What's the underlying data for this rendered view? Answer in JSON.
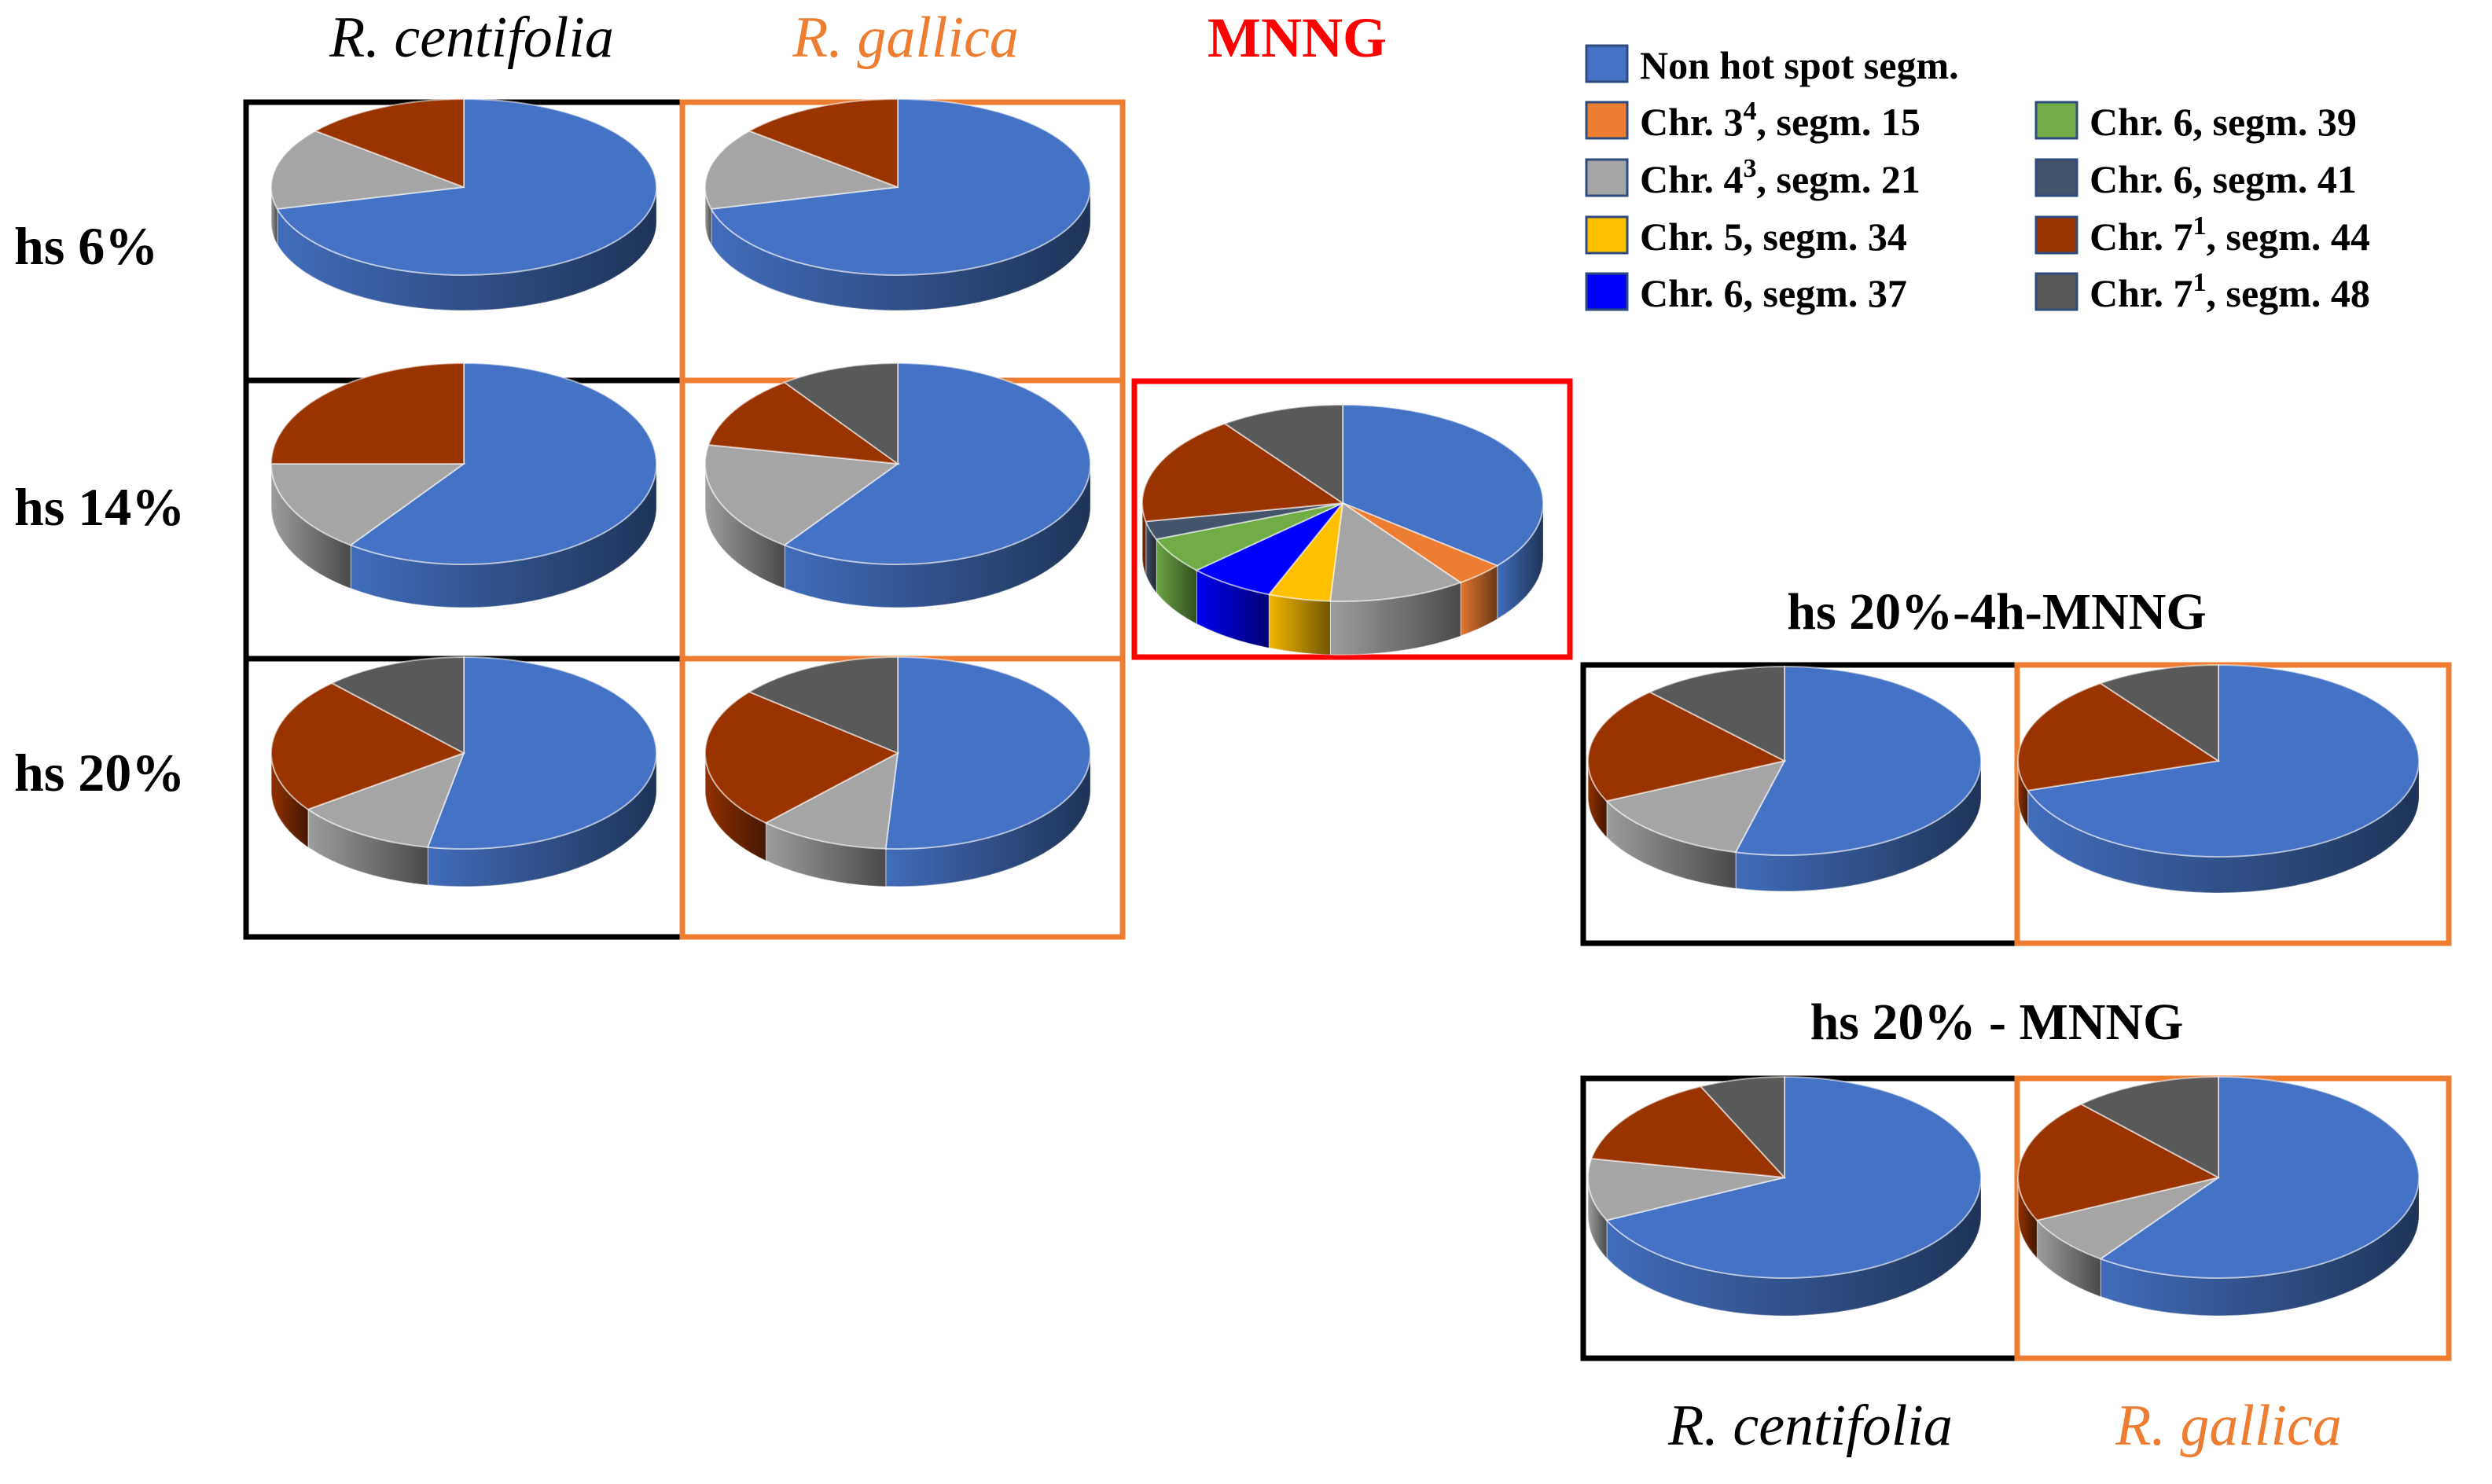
{
  "colors": {
    "non_hot_spot": "#4472C4",
    "chr3_15": "#ED7D31",
    "chr4_21": "#A5A5A5",
    "chr5_34": "#FFC000",
    "chr6_37": "#0000FF",
    "chr6_39": "#70AD47",
    "chr6_41": "#44546A",
    "chr7_44": "#993300",
    "chr7_48": "#595959",
    "frame_centifolia": "#000000",
    "frame_gallica": "#ED7D31",
    "frame_mnng": "#FF0000",
    "title_gallica": "#ED7D31",
    "title_mnng": "#FF0000"
  },
  "labels": {
    "col_centifolia": "R. centifolia",
    "col_gallica": "R. gallica",
    "col_mnng": "MNNG",
    "row_hs6": "hs 6%",
    "row_hs14": "hs 14%",
    "row_hs20": "hs 20%",
    "group_4h": "hs 20%-4h-MNNG",
    "group_mnng": "hs 20% - MNNG",
    "bottom_centifolia": "R. centifolia",
    "bottom_gallica": "R. gallica"
  },
  "legend": [
    {
      "key": "non_hot_spot",
      "pre": "Non hot spot segm.",
      "sup": "",
      "post": ""
    },
    {
      "key": "chr3_15",
      "pre": "Chr. 3",
      "sup": "4",
      "post": ", segm. 15"
    },
    {
      "key": "chr4_21",
      "pre": "Chr. 4",
      "sup": "3",
      "post": ", segm. 21"
    },
    {
      "key": "chr5_34",
      "pre": "Chr. 5, segm. 34",
      "sup": "",
      "post": ""
    },
    {
      "key": "chr6_37",
      "pre": "Chr. 6, segm. 37",
      "sup": "",
      "post": ""
    },
    {
      "key": "chr6_39",
      "pre": "Chr. 6, segm. 39",
      "sup": "",
      "post": ""
    },
    {
      "key": "chr6_41",
      "pre": "Chr. 6, segm. 41",
      "sup": "",
      "post": ""
    },
    {
      "key": "chr7_44",
      "pre": "Chr. 7",
      "sup": "1",
      "post": ", segm. 44"
    },
    {
      "key": "chr7_48",
      "pre": "Chr. 7",
      "sup": "1",
      "post": ", segm. 48"
    }
  ],
  "chart_data": [
    {
      "type": "pie",
      "id": "centifolia_hs6",
      "title": "R. centifolia, hs 6%",
      "categories": [
        "non_hot_spot",
        "chr4_21",
        "chr7_44"
      ],
      "values": [
        71,
        15,
        14
      ]
    },
    {
      "type": "pie",
      "id": "gallica_hs6",
      "title": "R. gallica, hs 6%",
      "categories": [
        "non_hot_spot",
        "chr4_21",
        "chr7_44"
      ],
      "values": [
        71,
        15,
        14
      ]
    },
    {
      "type": "pie",
      "id": "centifolia_hs14",
      "title": "R. centifolia, hs 14%",
      "categories": [
        "non_hot_spot",
        "chr4_21",
        "chr7_44"
      ],
      "values": [
        60,
        15,
        25
      ]
    },
    {
      "type": "pie",
      "id": "gallica_hs14",
      "title": "R. gallica, hs 14%",
      "categories": [
        "non_hot_spot",
        "chr4_21",
        "chr7_44",
        "chr7_48"
      ],
      "values": [
        60,
        18,
        12,
        10
      ]
    },
    {
      "type": "pie",
      "id": "mnng",
      "title": "MNNG",
      "categories": [
        "non_hot_spot",
        "chr3_15",
        "chr4_21",
        "chr5_34",
        "chr6_37",
        "chr6_39",
        "chr6_41",
        "chr7_44",
        "chr7_48"
      ],
      "values": [
        36,
        4,
        11,
        5,
        7,
        6,
        3,
        18,
        10
      ]
    },
    {
      "type": "pie",
      "id": "centifolia_hs20",
      "title": "R. centifolia, hs 20%",
      "categories": [
        "non_hot_spot",
        "chr4_21",
        "chr7_44",
        "chr7_48"
      ],
      "values": [
        53,
        12,
        23,
        12
      ]
    },
    {
      "type": "pie",
      "id": "gallica_hs20",
      "title": "R. gallica, hs 20%",
      "categories": [
        "non_hot_spot",
        "chr4_21",
        "chr7_44",
        "chr7_48"
      ],
      "values": [
        51,
        11,
        24,
        14
      ]
    },
    {
      "type": "pie",
      "id": "centifolia_4h",
      "title": "R. centifolia, hs 20%-4h-MNNG",
      "categories": [
        "non_hot_spot",
        "chr4_21",
        "chr7_44",
        "chr7_48"
      ],
      "values": [
        54,
        14,
        20,
        12
      ]
    },
    {
      "type": "pie",
      "id": "gallica_4h",
      "title": "R. gallica, hs 20%-4h-MNNG",
      "categories": [
        "non_hot_spot",
        "chr7_44",
        "chr7_48"
      ],
      "values": [
        70,
        20,
        10
      ]
    },
    {
      "type": "pie",
      "id": "centifolia_mnng",
      "title": "R. centifolia, hs 20% - MNNG",
      "categories": [
        "non_hot_spot",
        "chr4_21",
        "chr7_44",
        "chr7_48"
      ],
      "values": [
        68,
        10,
        15,
        7
      ]
    },
    {
      "type": "pie",
      "id": "gallica_mnng",
      "title": "R. gallica, hs 20% - MNNG",
      "categories": [
        "non_hot_spot",
        "chr4_21",
        "chr7_44",
        "chr7_48"
      ],
      "values": [
        60,
        8,
        20,
        12
      ]
    }
  ]
}
